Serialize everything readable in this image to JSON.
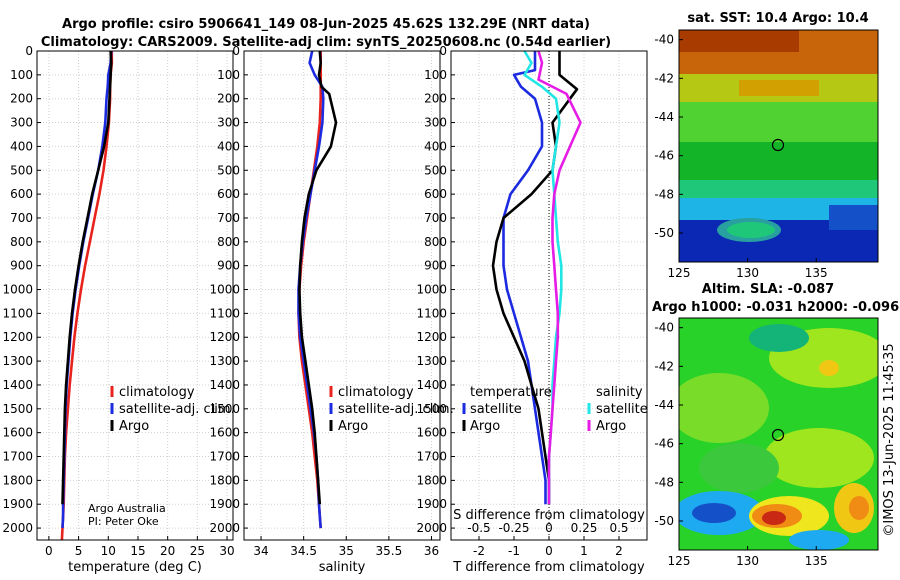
{
  "title_line1": "Argo profile: csiro 5906641_149 08-Jun-2025 45.62S 132.29E (NRT data)",
  "title_line2": "Climatology: CARS2009. Satellite-adj clim: synTS_20250608.nc (0.54d earlier)",
  "depth_ticks": [
    "0",
    "100",
    "200",
    "300",
    "400",
    "500",
    "600",
    "700",
    "800",
    "900",
    "1000",
    "1100",
    "1200",
    "1300",
    "1400",
    "1500",
    "1600",
    "1700",
    "1800",
    "1900",
    "2000"
  ],
  "credit_line1": "Argo Australia",
  "credit_line2": "PI: Peter Oke",
  "legend": {
    "climatology": "climatology",
    "satellite": "satellite-adj. clim.",
    "argo": "Argo",
    "temperature_header": "temperature",
    "salinity_header": "salinity",
    "satellite_short": "satellite",
    "argo_short": "Argo"
  },
  "colors": {
    "climatology": "#e8221c",
    "satellite": "#1c2be0",
    "argo": "#000000",
    "sat_sal": "#22e6e6",
    "argo_sal": "#e61ce6"
  },
  "sst_title": "sat. SST: 10.4 Argo: 10.4",
  "sla_title1": "Altim. SLA: -0.087",
  "sla_title2": "Argo h1000: -0.031 h2000: -0.096",
  "map_lat_ticks": [
    "-40",
    "-42",
    "-44",
    "-46",
    "-48",
    "-50"
  ],
  "map_lon_ticks": [
    "125",
    "130",
    "135"
  ],
  "stamp": "©IMOS 13-Jun-2025 11:45:35",
  "chart_data": [
    {
      "type": "line",
      "title": "",
      "xlabel": "temperature (deg C)",
      "ylabel": "",
      "xlim": [
        -2,
        31
      ],
      "ylim": [
        2050,
        0
      ],
      "xticks": [
        "0",
        "5",
        "10",
        "15",
        "20",
        "25",
        "30"
      ],
      "xtick_values": [
        0,
        5,
        10,
        15,
        20,
        25,
        30
      ],
      "series": [
        {
          "name": "climatology",
          "color": "#e8221c",
          "x": [
            10.6,
            10.6,
            10.4,
            10.3,
            10.3,
            10.1,
            9.7,
            9.2,
            8.5,
            7.7,
            6.9,
            6.1,
            5.4,
            4.8,
            4.3,
            3.9,
            3.5,
            3.2,
            2.9,
            2.7,
            2.6,
            2.5,
            2.4,
            2.3,
            2.2
          ],
          "y": [
            0,
            50,
            100,
            150,
            200,
            300,
            400,
            500,
            600,
            700,
            800,
            900,
            1000,
            1100,
            1200,
            1300,
            1400,
            1500,
            1600,
            1700,
            1800,
            1900,
            1950,
            2000,
            2050
          ]
        },
        {
          "name": "satellite-adj. clim.",
          "color": "#1c2be0",
          "x": [
            10.5,
            10.4,
            10.0,
            9.9,
            9.7,
            9.5,
            9.0,
            8.3,
            7.4,
            6.6,
            5.8,
            5.1,
            4.5,
            4.0,
            3.6,
            3.3,
            3.0,
            2.8,
            2.7,
            2.6,
            2.5,
            2.4,
            2.4,
            2.3
          ],
          "y": [
            0,
            50,
            100,
            150,
            200,
            300,
            400,
            500,
            600,
            700,
            800,
            900,
            1000,
            1100,
            1200,
            1300,
            1400,
            1500,
            1600,
            1700,
            1800,
            1900,
            1950,
            2000
          ]
        },
        {
          "name": "Argo",
          "color": "#000000",
          "x": [
            10.4,
            10.5,
            10.4,
            10.3,
            10.2,
            10.0,
            9.3,
            8.3,
            7.3,
            6.5,
            5.7,
            5.0,
            4.4,
            3.9,
            3.5,
            3.2,
            2.9,
            2.7,
            2.6,
            2.5,
            2.4,
            2.3
          ],
          "y": [
            0,
            50,
            100,
            150,
            200,
            300,
            400,
            500,
            600,
            700,
            800,
            900,
            1000,
            1100,
            1200,
            1300,
            1400,
            1500,
            1600,
            1700,
            1800,
            1900
          ]
        }
      ]
    },
    {
      "type": "line",
      "title": "",
      "xlabel": "salinity",
      "ylabel": "",
      "xlim": [
        33.8,
        36.1
      ],
      "ylim": [
        2050,
        0
      ],
      "xticks": [
        "34",
        "34.5",
        "35",
        "35.5",
        "36"
      ],
      "xtick_values": [
        34,
        34.5,
        35,
        35.5,
        36
      ],
      "series": [
        {
          "name": "climatology",
          "color": "#e8221c",
          "x": [
            34.7,
            34.7,
            34.7,
            34.7,
            34.7,
            34.69,
            34.66,
            34.62,
            34.58,
            34.54,
            34.5,
            34.47,
            34.45,
            34.44,
            34.45,
            34.48,
            34.52,
            34.56,
            34.6,
            34.63,
            34.66,
            34.68,
            34.69,
            34.7
          ],
          "y": [
            0,
            50,
            100,
            150,
            200,
            300,
            400,
            500,
            600,
            700,
            800,
            900,
            1000,
            1100,
            1200,
            1300,
            1400,
            1500,
            1600,
            1700,
            1800,
            1900,
            1950,
            2000
          ]
        },
        {
          "name": "satellite-adj. clim.",
          "color": "#1c2be0",
          "x": [
            34.6,
            34.57,
            34.63,
            34.72,
            34.73,
            34.72,
            34.68,
            34.63,
            34.58,
            34.53,
            34.49,
            34.46,
            34.44,
            34.44,
            34.46,
            34.5,
            34.54,
            34.58,
            34.62,
            34.65,
            34.67,
            34.68,
            34.69,
            34.7
          ],
          "y": [
            0,
            50,
            100,
            150,
            200,
            300,
            400,
            500,
            600,
            700,
            800,
            900,
            1000,
            1100,
            1200,
            1300,
            1400,
            1500,
            1600,
            1700,
            1800,
            1900,
            1950,
            2000
          ]
        },
        {
          "name": "Argo",
          "color": "#000000",
          "x": [
            34.69,
            34.7,
            34.68,
            34.71,
            34.8,
            34.88,
            34.82,
            34.65,
            34.56,
            34.51,
            34.48,
            34.46,
            34.45,
            34.46,
            34.48,
            34.52,
            34.56,
            34.6,
            34.63,
            34.65,
            34.67,
            34.69
          ],
          "y": [
            0,
            50,
            100,
            150,
            180,
            300,
            400,
            500,
            600,
            700,
            800,
            900,
            1000,
            1100,
            1200,
            1300,
            1400,
            1500,
            1600,
            1700,
            1800,
            1900
          ]
        }
      ]
    },
    {
      "type": "line",
      "title": "",
      "xlabel": "T difference from climatology",
      "xlabel_top": "S difference from climatology",
      "ylabel": "",
      "xlim": [
        -2.8,
        2.8
      ],
      "ylim": [
        2050,
        0
      ],
      "xticks": [
        "-2",
        "-1",
        "0",
        "1",
        "2"
      ],
      "xtick_values": [
        -2,
        -1,
        0,
        1,
        2
      ],
      "xticks_top": [
        "-0.5",
        "-0.25",
        "0",
        "0.25",
        "0.5"
      ],
      "xtick_top_values": [
        -2,
        -1,
        0,
        1,
        2
      ],
      "series": [
        {
          "name": "temperature satellite",
          "color": "#1c2be0",
          "x": [
            -0.4,
            -0.4,
            -1.0,
            -0.8,
            -0.4,
            -0.2,
            -0.2,
            -0.6,
            -1.1,
            -1.3,
            -1.3,
            -1.3,
            -1.2,
            -1.0,
            -0.8,
            -0.6,
            -0.5,
            -0.4,
            -0.3,
            -0.2,
            -0.1,
            -0.1
          ],
          "y": [
            0,
            80,
            100,
            150,
            200,
            300,
            400,
            500,
            600,
            700,
            800,
            900,
            1000,
            1100,
            1200,
            1300,
            1400,
            1500,
            1600,
            1700,
            1800,
            1900
          ]
        },
        {
          "name": "temperature Argo",
          "color": "#000000",
          "x": [
            0.3,
            0.3,
            0.8,
            0.6,
            0.1,
            0.2,
            0.1,
            -0.5,
            -1.3,
            -1.5,
            -1.6,
            -1.5,
            -1.3,
            -1.0,
            -0.7,
            -0.5,
            -0.3,
            -0.2,
            -0.1,
            0,
            0
          ],
          "y": [
            0,
            100,
            160,
            200,
            300,
            400,
            500,
            600,
            700,
            800,
            900,
            1000,
            1100,
            1200,
            1300,
            1400,
            1500,
            1600,
            1700,
            1800,
            1900
          ]
        },
        {
          "name": "salinity satellite",
          "color": "#22e6e6",
          "x": [
            -0.7,
            -0.5,
            -0.7,
            -0.2,
            0.2,
            0.3,
            0.2,
            0.1,
            0.15,
            0.2,
            0.25,
            0.35,
            0.35,
            0.3,
            0.2,
            0.15,
            0.1,
            0.1,
            0.05,
            0,
            0
          ],
          "y": [
            0,
            50,
            100,
            150,
            200,
            300,
            400,
            500,
            600,
            700,
            800,
            900,
            1000,
            1100,
            1200,
            1300,
            1400,
            1500,
            1600,
            1700,
            1900
          ]
        },
        {
          "name": "salinity Argo",
          "color": "#e61ce6",
          "x": [
            -0.3,
            -0.2,
            -0.3,
            0.5,
            0.9,
            0.6,
            0.3,
            0.15,
            0.1,
            0.1,
            0.15,
            0.2,
            0.25,
            0.25,
            0.2,
            0.15,
            0.1,
            0.05,
            0,
            0
          ],
          "y": [
            0,
            50,
            120,
            180,
            300,
            400,
            500,
            600,
            700,
            800,
            900,
            1000,
            1100,
            1200,
            1300,
            1400,
            1500,
            1600,
            1700,
            1900
          ]
        }
      ]
    },
    {
      "type": "heatmap",
      "title": "sat. SST: 10.4 Argo: 10.4",
      "xlim": [
        125,
        139.5
      ],
      "ylim": [
        -51.5,
        -39.5
      ],
      "marker": {
        "lon": 132.29,
        "lat": -45.62
      }
    },
    {
      "type": "heatmap",
      "title": "Altim. SLA: -0.087 / Argo h1000: -0.031 h2000: -0.096",
      "xlim": [
        125,
        139.5
      ],
      "ylim": [
        -51.5,
        -39.5
      ],
      "marker": {
        "lon": 132.29,
        "lat": -45.62
      }
    }
  ]
}
